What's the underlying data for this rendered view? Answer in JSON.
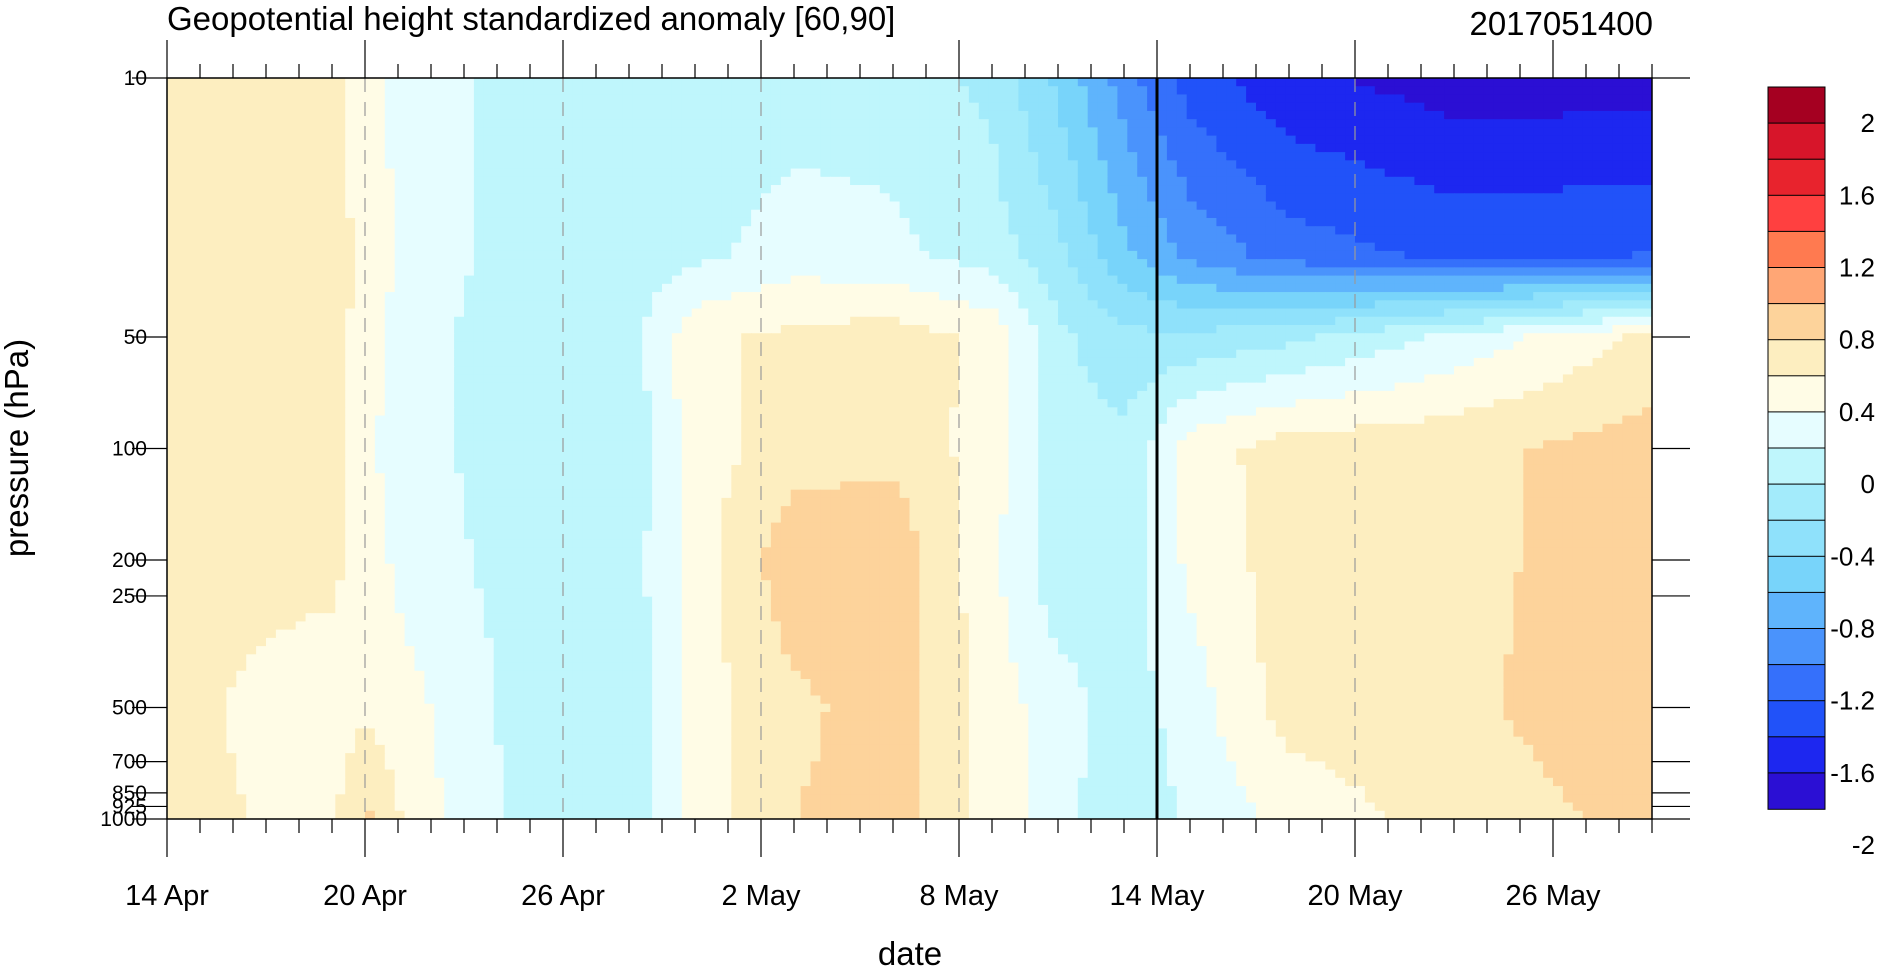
{
  "chart_data": {
    "type": "heatmap",
    "title": "Geopotential height standardized anomaly [60,90]",
    "right_title": "2017051400",
    "xlabel": "date",
    "ylabel": "pressure (hPa)",
    "x_ticks": [
      "14 Apr",
      "20 Apr",
      "26 Apr",
      "2 May",
      "8 May",
      "14 May",
      "20 May",
      "26 May"
    ],
    "x_range_days": [
      0,
      45
    ],
    "y_ticks": [
      10,
      50,
      100,
      200,
      250,
      500,
      700,
      850,
      925,
      1000
    ],
    "y_scale": "log",
    "y_range": [
      10,
      1000
    ],
    "y_inverted": true,
    "vertical_line": "14 May",
    "grid": "dashed vertical lines at date ticks",
    "colorbar": {
      "labels": [
        "2",
        "1.6",
        "1.2",
        "0.8",
        "0.4",
        "0",
        "-0.4",
        "-0.8",
        "-1.2",
        "-1.6",
        "-2"
      ],
      "colors": [
        "#a50021",
        "#d7152a",
        "#e8232d",
        "#ff4040",
        "#ff7a50",
        "#ffa675",
        "#fdd39b",
        "#fdeec0",
        "#fffce6",
        "#e6fdff",
        "#bff6fc",
        "#a3ebfb",
        "#8fe1fb",
        "#78d4fa",
        "#5fb4fc",
        "#4a93fc",
        "#3570fb",
        "#2152f9",
        "#1d27f0",
        "#2b0fd4"
      ]
    },
    "levels": [
      -2.2,
      -2.0,
      -1.8,
      -1.6,
      -1.4,
      -1.2,
      -1.0,
      -0.8,
      -0.6,
      -0.4,
      -0.2,
      0,
      0.2,
      0.4,
      0.6
    ],
    "level_colors": [
      "#2b0fd4",
      "#1d27f0",
      "#2152f9",
      "#3570fb",
      "#4a93fc",
      "#5fb4fc",
      "#78d4fa",
      "#8fe1fb",
      "#a3ebfb",
      "#bff6fc",
      "#e6fdff",
      "#fffce6",
      "#fdeec0",
      "#fdd39b",
      "#ffa675"
    ],
    "columns_x_days": [
      0,
      5,
      6,
      7.5,
      11,
      14,
      16,
      19,
      22,
      25,
      27,
      29,
      31,
      34,
      39,
      45
    ],
    "grid_values": {
      "10": [
        0.25,
        0.25,
        0.05,
        -0.1,
        -0.3,
        -0.3,
        -0.35,
        -0.3,
        -0.3,
        -0.45,
        -0.85,
        -1.3,
        -1.7,
        -1.95,
        -2.1,
        -2.1
      ],
      "30": [
        0.3,
        0.3,
        0.15,
        -0.1,
        -0.3,
        -0.3,
        -0.25,
        -0.1,
        -0.15,
        -0.3,
        -0.55,
        -0.95,
        -1.25,
        -1.5,
        -1.65,
        -1.6
      ],
      "50": [
        0.25,
        0.3,
        0.1,
        -0.15,
        -0.3,
        -0.3,
        0.15,
        0.25,
        0.3,
        0.15,
        -0.35,
        -0.55,
        -0.55,
        -0.45,
        -0.15,
        0.25
      ],
      "100": [
        0.2,
        0.3,
        0.05,
        -0.15,
        -0.3,
        -0.35,
        0.1,
        0.3,
        0.35,
        0.1,
        -0.3,
        -0.35,
        0.1,
        0.3,
        0.35,
        0.5
      ],
      "200": [
        0.25,
        0.25,
        0.1,
        -0.1,
        -0.3,
        -0.3,
        0.1,
        0.55,
        0.55,
        0.05,
        -0.35,
        -0.3,
        0.05,
        0.3,
        0.35,
        0.5
      ],
      "500": [
        0.25,
        0.1,
        0.15,
        0.05,
        -0.3,
        -0.35,
        0.1,
        0.35,
        0.5,
        0.1,
        -0.1,
        -0.3,
        -0.1,
        0.3,
        0.35,
        0.55
      ],
      "1000": [
        0.25,
        0.15,
        0.45,
        0.1,
        -0.3,
        -0.35,
        0.1,
        0.4,
        0.5,
        0.1,
        -0.1,
        -0.4,
        -0.15,
        0.05,
        0.3,
        0.45
      ]
    }
  }
}
